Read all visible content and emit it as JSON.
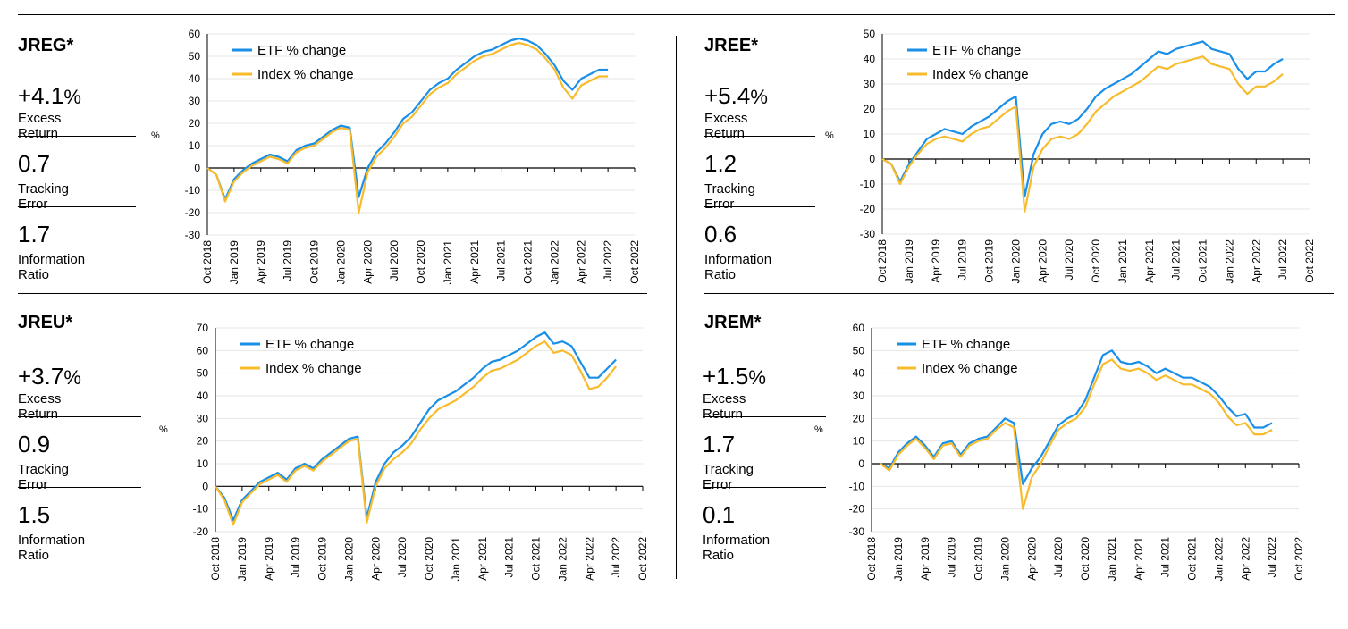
{
  "colors": {
    "etf": "#1a8fe8",
    "index": "#f7bb2c"
  },
  "legend": {
    "etf": "ETF % change",
    "index": "Index % change"
  },
  "unit_label": "%",
  "x_ticks": [
    "Oct 2018",
    "Jan 2019",
    "Apr 2019",
    "Jul 2019",
    "Oct 2019",
    "Jan 2020",
    "Apr 2020",
    "Jul 2020",
    "Oct 2020",
    "Jan 2021",
    "Apr 2021",
    "Jul 2021",
    "Oct 2021",
    "Jan 2022",
    "Apr 2022",
    "Jul 2022",
    "Oct 2022"
  ],
  "panels": [
    {
      "ticker": "JREG*",
      "excess_return": {
        "value": "+4.1",
        "suffix": "%",
        "label": "Excess Return"
      },
      "tracking_error": {
        "value": "0.7",
        "label": "Tracking Error"
      },
      "information_ratio": {
        "value": "1.7",
        "label": "Information Ratio"
      }
    },
    {
      "ticker": "JREE*",
      "excess_return": {
        "value": "+5.4",
        "suffix": "%",
        "label": "Excess Return"
      },
      "tracking_error": {
        "value": "1.2",
        "label": "Tracking Error"
      },
      "information_ratio": {
        "value": "0.6",
        "label": "Information Ratio"
      }
    },
    {
      "ticker": "JREU*",
      "excess_return": {
        "value": "+3.7",
        "suffix": "%",
        "label": "Excess Return"
      },
      "tracking_error": {
        "value": "0.9",
        "label": "Tracking Error"
      },
      "information_ratio": {
        "value": "1.5",
        "label": "Information Ratio"
      }
    },
    {
      "ticker": "JREM*",
      "excess_return": {
        "value": "+1.5",
        "suffix": "%",
        "label": "Excess Return"
      },
      "tracking_error": {
        "value": "1.7",
        "label": "Tracking Error"
      },
      "information_ratio": {
        "value": "0.1",
        "label": "Information Ratio"
      }
    }
  ],
  "chart_data": [
    {
      "type": "line",
      "title": "JREG*",
      "ylabel": "%",
      "ylim": [
        -30,
        60
      ],
      "yticks": [
        -30,
        -20,
        -10,
        0,
        10,
        20,
        30,
        40,
        50,
        60
      ],
      "x_months": [
        0,
        1,
        2,
        3,
        4,
        5,
        6,
        7,
        8,
        9,
        10,
        11,
        12,
        13,
        14,
        15,
        16,
        17,
        18,
        19,
        20,
        21,
        22,
        23,
        24,
        25,
        26,
        27,
        28,
        29,
        30,
        31,
        32,
        33,
        34,
        35,
        36,
        37,
        38,
        39,
        40,
        41,
        42,
        43,
        44,
        45
      ],
      "series": [
        {
          "name": "ETF % change",
          "values": [
            0,
            -3,
            -14,
            -5,
            -1,
            2,
            4,
            6,
            5,
            3,
            8,
            10,
            11,
            14,
            17,
            19,
            18,
            -13,
            0,
            7,
            11,
            16,
            22,
            25,
            30,
            35,
            38,
            40,
            44,
            47,
            50,
            52,
            53,
            55,
            57,
            58,
            57,
            55,
            51,
            46,
            39,
            35,
            40,
            42,
            44,
            44
          ]
        },
        {
          "name": "Index % change",
          "values": [
            0,
            -3,
            -15,
            -6,
            -2,
            1,
            3,
            5,
            4,
            2,
            7,
            9,
            10,
            13,
            16,
            18,
            17,
            -20,
            -2,
            5,
            9,
            14,
            20,
            23,
            28,
            33,
            36,
            38,
            42,
            45,
            48,
            50,
            51,
            53,
            55,
            56,
            55,
            53,
            49,
            44,
            36,
            31,
            37,
            39,
            41,
            41
          ]
        }
      ]
    },
    {
      "type": "line",
      "title": "JREE*",
      "ylabel": "%",
      "ylim": [
        -30,
        50
      ],
      "yticks": [
        -30,
        -20,
        -10,
        0,
        10,
        20,
        30,
        40,
        50
      ],
      "x_months": [
        0,
        1,
        2,
        3,
        4,
        5,
        6,
        7,
        8,
        9,
        10,
        11,
        12,
        13,
        14,
        15,
        16,
        17,
        18,
        19,
        20,
        21,
        22,
        23,
        24,
        25,
        26,
        27,
        28,
        29,
        30,
        31,
        32,
        33,
        34,
        35,
        36,
        37,
        38,
        39,
        40,
        41,
        42,
        43,
        44,
        45
      ],
      "series": [
        {
          "name": "ETF % change",
          "values": [
            0,
            -2,
            -9,
            -2,
            3,
            8,
            10,
            12,
            11,
            10,
            13,
            15,
            17,
            20,
            23,
            25,
            -15,
            2,
            10,
            14,
            15,
            14,
            16,
            20,
            25,
            28,
            30,
            32,
            34,
            37,
            40,
            43,
            42,
            44,
            45,
            46,
            47,
            44,
            43,
            42,
            36,
            32,
            35,
            35,
            38,
            40
          ]
        },
        {
          "name": "Index % change",
          "values": [
            0,
            -2,
            -10,
            -3,
            2,
            6,
            8,
            9,
            8,
            7,
            10,
            12,
            13,
            16,
            19,
            21,
            -21,
            -3,
            4,
            8,
            9,
            8,
            10,
            14,
            19,
            22,
            25,
            27,
            29,
            31,
            34,
            37,
            36,
            38,
            39,
            40,
            41,
            38,
            37,
            36,
            30,
            26,
            29,
            29,
            31,
            34
          ]
        }
      ]
    },
    {
      "type": "line",
      "title": "JREU*",
      "ylabel": "%",
      "ylim": [
        -20,
        70
      ],
      "yticks": [
        -20,
        -10,
        0,
        10,
        20,
        30,
        40,
        50,
        60,
        70
      ],
      "x_months": [
        0,
        1,
        2,
        3,
        4,
        5,
        6,
        7,
        8,
        9,
        10,
        11,
        12,
        13,
        14,
        15,
        16,
        17,
        18,
        19,
        20,
        21,
        22,
        23,
        24,
        25,
        26,
        27,
        28,
        29,
        30,
        31,
        32,
        33,
        34,
        35,
        36,
        37,
        38,
        39,
        40,
        41,
        42,
        43,
        44,
        45
      ],
      "series": [
        {
          "name": "ETF % change",
          "values": [
            0,
            -5,
            -15,
            -6,
            -2,
            2,
            4,
            6,
            3,
            8,
            10,
            8,
            12,
            15,
            18,
            21,
            22,
            -14,
            2,
            10,
            15,
            18,
            22,
            28,
            34,
            38,
            40,
            42,
            45,
            48,
            52,
            55,
            56,
            58,
            60,
            63,
            66,
            68,
            63,
            64,
            62,
            55,
            48,
            48,
            52,
            56
          ]
        },
        {
          "name": "Index % change",
          "values": [
            0,
            -6,
            -17,
            -7,
            -3,
            1,
            3,
            5,
            2,
            7,
            9,
            7,
            11,
            14,
            17,
            20,
            21,
            -16,
            0,
            8,
            12,
            15,
            19,
            25,
            30,
            34,
            36,
            38,
            41,
            44,
            48,
            51,
            52,
            54,
            56,
            59,
            62,
            64,
            59,
            60,
            58,
            51,
            43,
            44,
            48,
            53
          ]
        }
      ]
    },
    {
      "type": "line",
      "title": "JREM*",
      "ylabel": "%",
      "ylim": [
        -30,
        60
      ],
      "yticks": [
        -30,
        -20,
        -10,
        0,
        10,
        20,
        30,
        40,
        50,
        60
      ],
      "x_months": [
        1,
        2,
        3,
        4,
        5,
        6,
        7,
        8,
        9,
        10,
        11,
        12,
        13,
        14,
        15,
        16,
        17,
        18,
        19,
        20,
        21,
        22,
        23,
        24,
        25,
        26,
        27,
        28,
        29,
        30,
        31,
        32,
        33,
        34,
        35,
        36,
        37,
        38,
        39,
        40,
        41,
        42,
        43,
        44,
        45
      ],
      "series": [
        {
          "name": "ETF % change",
          "values": [
            0,
            -2,
            5,
            9,
            12,
            8,
            3,
            9,
            10,
            4,
            9,
            11,
            12,
            16,
            20,
            18,
            -9,
            -2,
            3,
            10,
            17,
            20,
            22,
            28,
            38,
            48,
            50,
            45,
            44,
            45,
            43,
            40,
            42,
            40,
            38,
            38,
            36,
            34,
            30,
            25,
            21,
            22,
            16,
            16,
            18
          ]
        },
        {
          "name": "Index % change",
          "values": [
            0,
            -3,
            4,
            8,
            11,
            7,
            2,
            8,
            9,
            3,
            8,
            10,
            11,
            15,
            18,
            16,
            -20,
            -6,
            0,
            8,
            15,
            18,
            20,
            25,
            35,
            44,
            46,
            42,
            41,
            42,
            40,
            37,
            39,
            37,
            35,
            35,
            33,
            31,
            27,
            21,
            17,
            18,
            13,
            13,
            15
          ]
        }
      ]
    }
  ]
}
